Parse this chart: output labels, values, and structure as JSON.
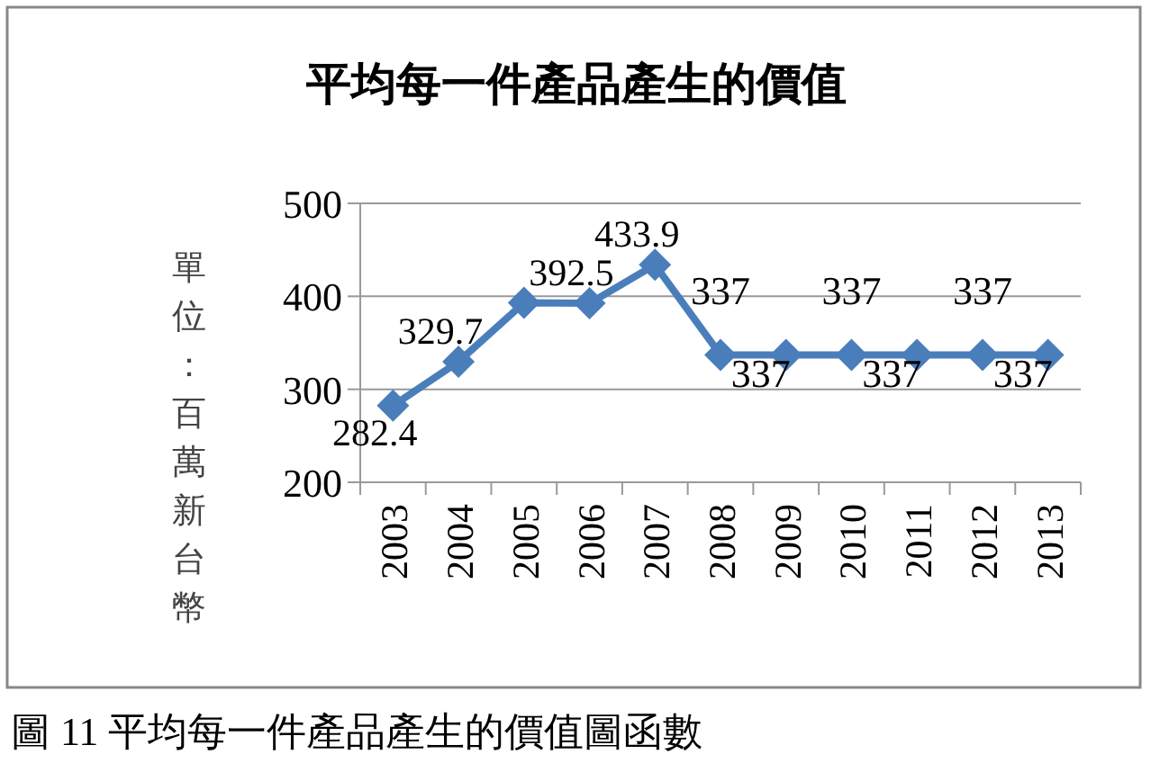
{
  "chart_data": {
    "type": "line",
    "title": "平均每一件產品產生的價值",
    "ylabel": "單位：百萬新台幣",
    "categories": [
      "2003",
      "2004",
      "2005",
      "2006",
      "2007",
      "2008",
      "2009",
      "2010",
      "2011",
      "2012",
      "2013"
    ],
    "series": [
      {
        "color": "#4a7ebb",
        "values": [
          282.4,
          329.7,
          393,
          392.5,
          433.9,
          337,
          337,
          337,
          337,
          337,
          337
        ],
        "value_labels": [
          "282.4",
          "329.7",
          null,
          "392.5",
          "433.9",
          "337",
          "337",
          "337",
          "337",
          "337",
          "337"
        ]
      }
    ],
    "ylim": [
      200,
      500
    ],
    "yticks": [
      200,
      300,
      400,
      500
    ],
    "grid": "y",
    "marker": "diamond",
    "line_style": "solid",
    "annotations": [
      "圖 11 平均每一件產品產生的價值圖函數"
    ]
  }
}
